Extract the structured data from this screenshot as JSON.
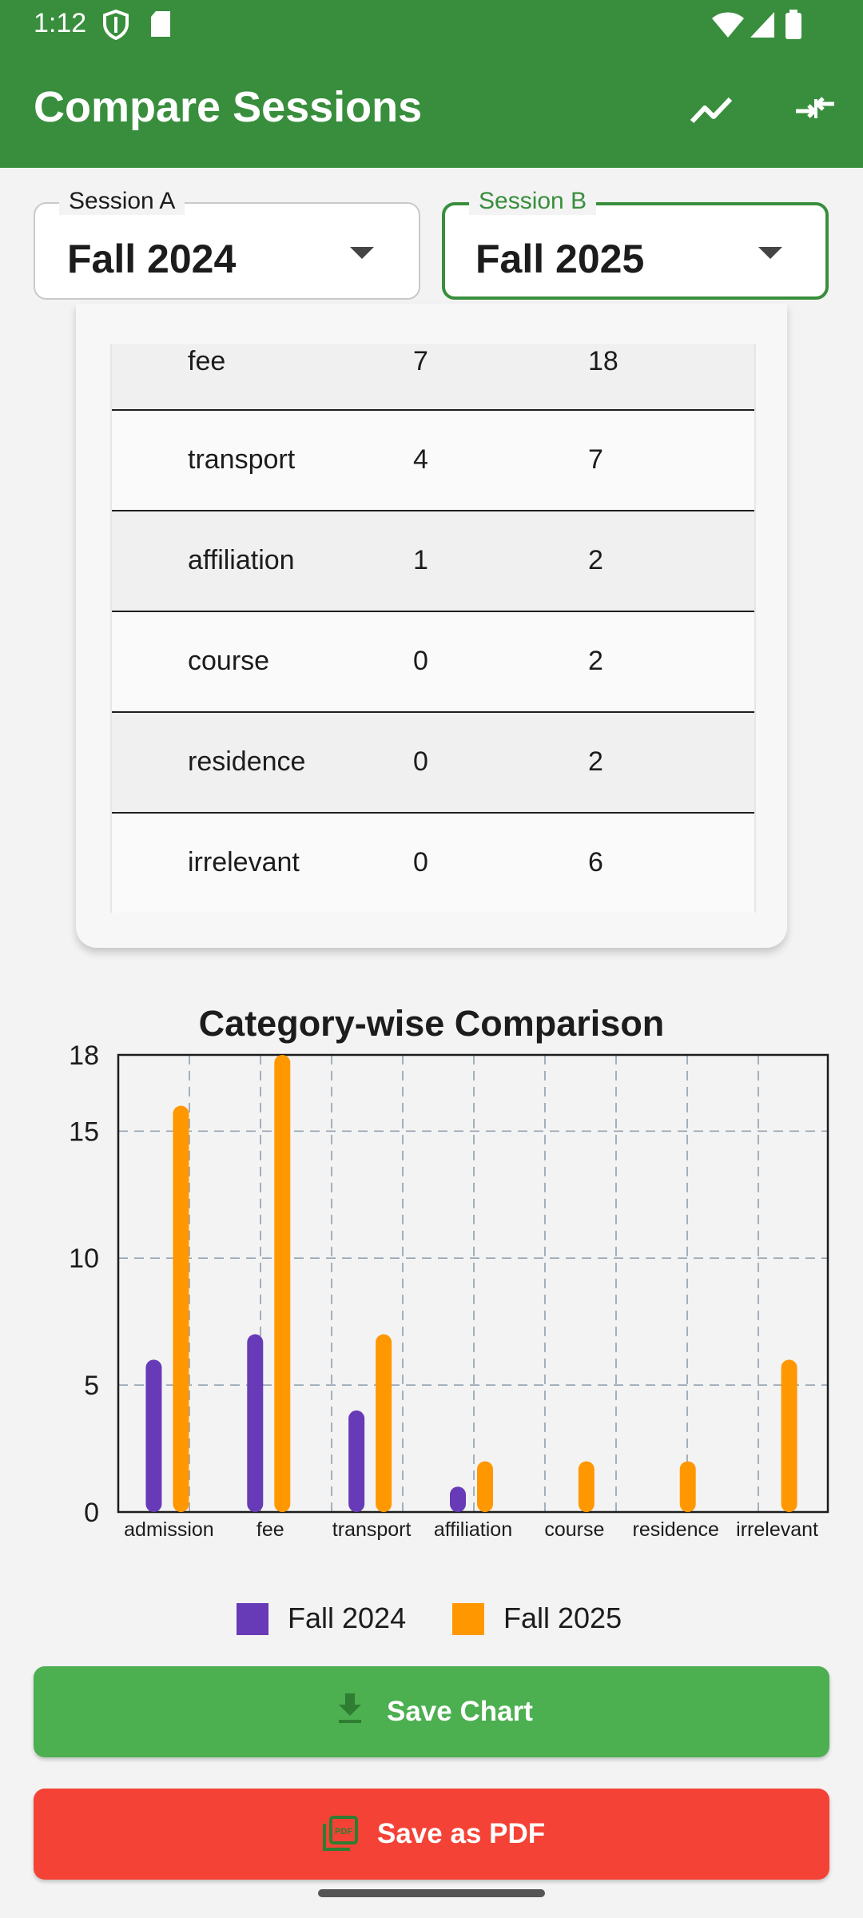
{
  "status_bar": {
    "time": "1:12"
  },
  "app_bar": {
    "title": "Compare Sessions",
    "actions": [
      "trend-chart-icon",
      "compare-arrows-icon"
    ],
    "color": "#388e3c"
  },
  "session_a": {
    "label": "Session A",
    "value": "Fall 2024"
  },
  "session_b": {
    "label": "Session B",
    "value": "Fall 2025"
  },
  "table": {
    "rows": [
      {
        "category": "fee",
        "a": "7",
        "b": "18"
      },
      {
        "category": "transport",
        "a": "4",
        "b": "7"
      },
      {
        "category": "affiliation",
        "a": "1",
        "b": "2"
      },
      {
        "category": "course",
        "a": "0",
        "b": "2"
      },
      {
        "category": "residence",
        "a": "0",
        "b": "2"
      },
      {
        "category": "irrelevant",
        "a": "0",
        "b": "6"
      }
    ]
  },
  "chart_data": {
    "type": "bar",
    "title": "Category-wise Comparison",
    "categories": [
      "admission",
      "fee",
      "transport",
      "affiliation",
      "course",
      "residence",
      "irrelevant"
    ],
    "series": [
      {
        "name": "Fall 2024",
        "color": "#673ab7",
        "values": [
          6,
          7,
          4,
          1,
          0,
          0,
          0
        ]
      },
      {
        "name": "Fall 2025",
        "color": "#ff9800",
        "values": [
          16,
          18,
          7,
          2,
          2,
          2,
          6
        ]
      }
    ],
    "yticks": [
      0,
      5,
      10,
      15,
      18
    ],
    "ylim": [
      0,
      18
    ],
    "grid": true,
    "legend": "bottom-center"
  },
  "buttons": {
    "save_chart": "Save Chart",
    "save_pdf": "Save as PDF",
    "save_color": "#4caf50",
    "pdf_color": "#f44336"
  }
}
